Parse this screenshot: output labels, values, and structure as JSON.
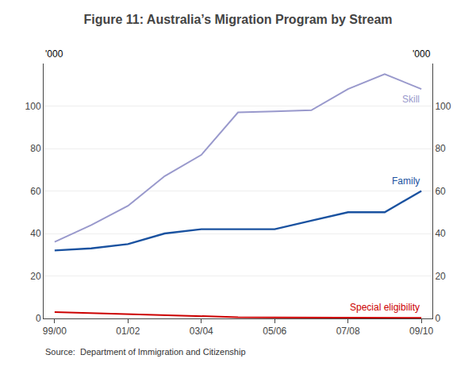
{
  "chart_data": {
    "type": "line",
    "title": "Figure 11: Australia’s Migration Program by Stream",
    "x": [
      0,
      1,
      2,
      3,
      4,
      5,
      6,
      7,
      8,
      9,
      10
    ],
    "series": [
      {
        "name": "Skill",
        "color": "#9999cc",
        "values": [
          36,
          44,
          53,
          67,
          77,
          97,
          97.5,
          98,
          108,
          115,
          108
        ]
      },
      {
        "name": "Family",
        "color": "#1a52a0",
        "values": [
          32,
          33,
          35,
          40,
          42,
          42,
          42,
          46,
          50,
          50,
          60
        ]
      },
      {
        "name": "Special eligibility",
        "color": "#cc0000",
        "values": [
          3.0,
          2.5,
          2.0,
          1.5,
          1.0,
          0.6,
          0.5,
          0.4,
          0.4,
          0.4,
          0.3
        ]
      }
    ],
    "xlim": [
      -0.3,
      10.3
    ],
    "xticks": [
      {
        "value": 0,
        "label": "99/00"
      },
      {
        "value": 2,
        "label": "01/02"
      },
      {
        "value": 4,
        "label": "03/04"
      },
      {
        "value": 6,
        "label": "05/06"
      },
      {
        "value": 8,
        "label": "07/08"
      },
      {
        "value": 10,
        "label": "09/10"
      }
    ],
    "ylim": [
      0,
      120
    ],
    "yticks": [
      0,
      20,
      40,
      60,
      80,
      100
    ],
    "y2lim": [
      0,
      120
    ],
    "y2ticks": [
      0,
      20,
      40,
      60,
      80,
      100
    ],
    "grid": true,
    "annotations": [
      "'000",
      "'000",
      "Source:  Department of Immigration and Citizenship"
    ]
  }
}
